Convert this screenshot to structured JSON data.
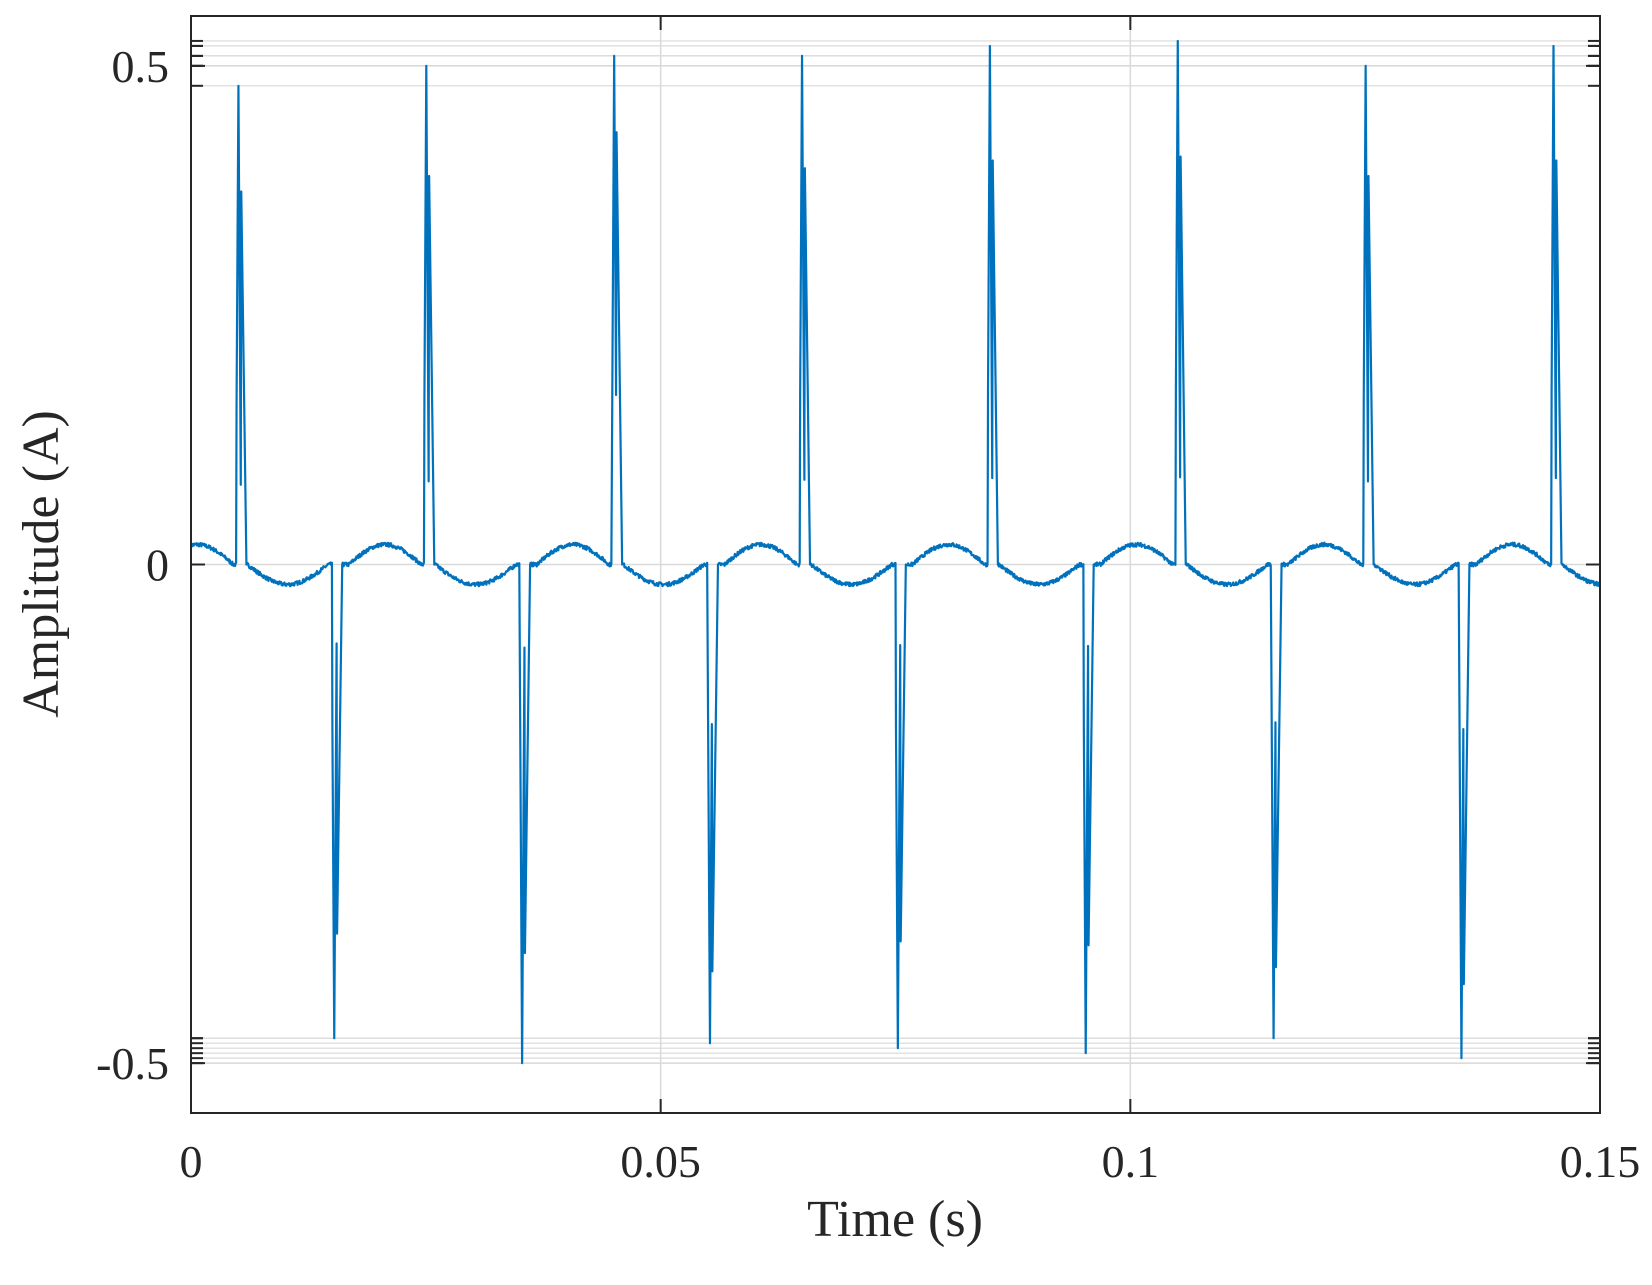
{
  "chart_data": {
    "type": "line",
    "title": "",
    "xlabel": "Time (s)",
    "ylabel": "Amplitude (A)",
    "xlim": [
      0,
      0.15
    ],
    "ylim": [
      -0.55,
      0.55
    ],
    "xticks": [
      0,
      0.05,
      0.1,
      0.15
    ],
    "xtick_labels": [
      "0",
      "0.05",
      "0.1",
      "0.15"
    ],
    "yticks": [
      -0.5,
      0,
      0.5
    ],
    "ytick_labels": [
      "-0.5",
      "0",
      "0.5"
    ],
    "grid": true,
    "legend": "none",
    "line_color": "#0072BD",
    "axis_color": "#262626",
    "grid_color": "#d9d9d9",
    "period_s": 0.02,
    "positive_pulses": [
      {
        "t": 0.005,
        "peak": 0.48
      },
      {
        "t": 0.025,
        "peak": 0.5
      },
      {
        "t": 0.045,
        "peak": 0.51
      },
      {
        "t": 0.065,
        "peak": 0.51
      },
      {
        "t": 0.085,
        "peak": 0.52
      },
      {
        "t": 0.105,
        "peak": 0.525
      },
      {
        "t": 0.125,
        "peak": 0.5
      },
      {
        "t": 0.145,
        "peak": 0.52
      }
    ],
    "negative_pulses": [
      {
        "t": 0.0152,
        "peak": -0.475
      },
      {
        "t": 0.0352,
        "peak": -0.5
      },
      {
        "t": 0.0552,
        "peak": -0.48
      },
      {
        "t": 0.0752,
        "peak": -0.485
      },
      {
        "t": 0.0952,
        "peak": -0.49
      },
      {
        "t": 0.1152,
        "peak": -0.475
      },
      {
        "t": 0.1352,
        "peak": -0.495
      }
    ],
    "baseline_hump_amplitude": 0.02
  }
}
